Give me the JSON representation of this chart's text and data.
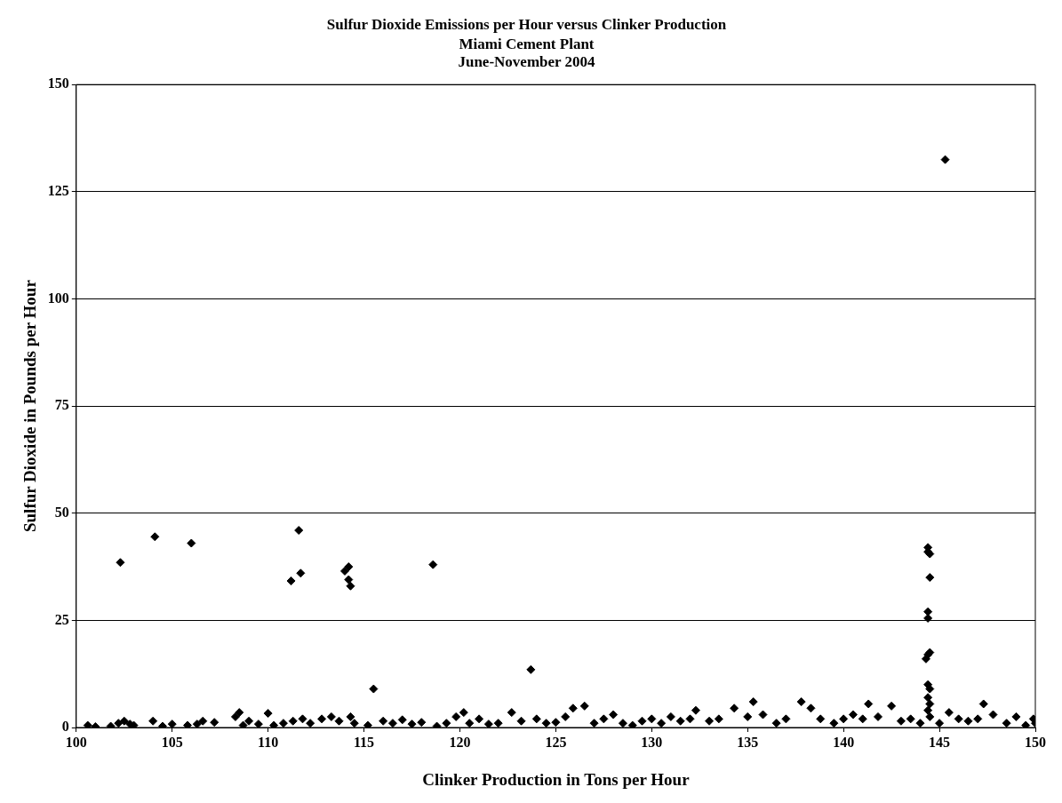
{
  "chart_data": {
    "type": "scatter",
    "title": "Sulfur Dioxide Emissions per Hour versus Clinker Production",
    "subtitle": "Miami Cement Plant\nJune-November 2004",
    "xlabel": "Clinker Production in Tons per Hour",
    "ylabel": "Sulfur Dioxide in Pounds per Hour",
    "xlim": [
      100,
      150
    ],
    "xticks": [
      100,
      105,
      110,
      115,
      120,
      125,
      130,
      135,
      140,
      145,
      150
    ],
    "ylim": [
      0,
      150
    ],
    "yticks": [
      0,
      25,
      50,
      75,
      100,
      125,
      150
    ],
    "grid": "y",
    "legend": false,
    "marker": "diamond",
    "series": [
      {
        "color": "#000000",
        "x": [
          102.3,
          104.1,
          106.0,
          111.2,
          111.6,
          111.7,
          114.0,
          114.2,
          114.2,
          114.3,
          115.5,
          118.6,
          123.7,
          145.3,
          144.4,
          144.4,
          144.5,
          144.5,
          144.4,
          144.4,
          144.5,
          144.4,
          144.3,
          144.4,
          144.5,
          144.4,
          144.5,
          144.4,
          100.6,
          101.0,
          101.8,
          102.2,
          102.5,
          102.8,
          103.0,
          104.0,
          104.5,
          105.0,
          105.8,
          106.3,
          106.6,
          107.2,
          108.3,
          108.5,
          108.7,
          109.0,
          109.5,
          110.0,
          110.3,
          110.8,
          111.3,
          111.8,
          112.2,
          112.8,
          113.3,
          113.7,
          114.3,
          114.5,
          115.2,
          116.0,
          116.5,
          117.0,
          117.5,
          118.0,
          118.8,
          119.3,
          119.8,
          120.2,
          120.5,
          121.0,
          121.5,
          122.0,
          122.7,
          123.2,
          124.0,
          124.5,
          125.0,
          125.5,
          125.9,
          126.5,
          127.0,
          127.5,
          128.0,
          128.5,
          129.0,
          129.5,
          130.0,
          130.5,
          131.0,
          131.5,
          132.0,
          132.3,
          133.0,
          133.5,
          134.3,
          135.0,
          135.3,
          135.8,
          136.5,
          137.0,
          137.8,
          138.3,
          138.8,
          139.5,
          140.0,
          140.5,
          141.0,
          141.3,
          141.8,
          142.5,
          143.0,
          143.5,
          144.0,
          144.5,
          145.0,
          145.5,
          146.0,
          146.5,
          147.0,
          147.3,
          147.8,
          148.5,
          149.0,
          149.5,
          149.9,
          150.0
        ],
        "values": [
          38.5,
          44.5,
          43,
          34.2,
          46,
          36,
          36.5,
          37.5,
          34.5,
          33,
          9,
          38,
          13.5,
          132.5,
          42,
          41,
          40.5,
          35,
          27,
          25.5,
          17.5,
          17,
          16,
          10,
          9,
          7,
          5.5,
          4,
          0.5,
          0.2,
          0.3,
          1.0,
          1.5,
          0.8,
          0.5,
          1.5,
          0.3,
          0.8,
          0.5,
          0.8,
          1.5,
          1.2,
          2.5,
          3.5,
          0.5,
          1.5,
          0.8,
          3.3,
          0.5,
          1.0,
          1.5,
          2.0,
          1.0,
          2.0,
          2.5,
          1.5,
          2.5,
          1.0,
          0.5,
          1.5,
          1.0,
          1.8,
          0.8,
          1.2,
          0.3,
          1.0,
          2.5,
          3.5,
          1.0,
          2.0,
          0.8,
          1.0,
          3.5,
          1.5,
          2.0,
          1.0,
          1.2,
          2.5,
          4.5,
          5.0,
          1.0,
          2.0,
          3.0,
          1.0,
          0.5,
          1.5,
          2.0,
          1.0,
          2.5,
          1.5,
          2.0,
          4.0,
          1.5,
          2.0,
          4.5,
          2.5,
          6.0,
          3.0,
          1.0,
          2.0,
          6.0,
          4.5,
          2.0,
          1.0,
          2.0,
          3.0,
          2.0,
          5.5,
          2.5,
          5.0,
          1.5,
          2.0,
          1.0,
          2.5,
          1.0,
          3.5,
          2.0,
          1.5,
          2.0,
          5.5,
          3.0,
          1.0,
          2.5,
          0.5,
          2.0,
          1.0
        ]
      }
    ]
  }
}
